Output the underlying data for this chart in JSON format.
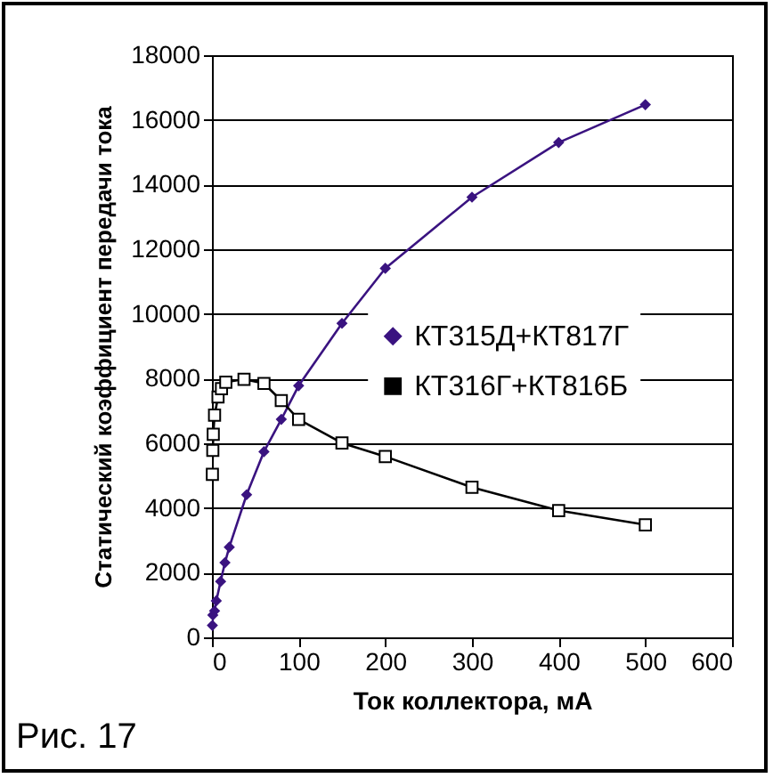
{
  "chart_data": {
    "type": "line",
    "xlabel": "Ток коллектора, мА",
    "ylabel": "Статический коэффициент передачи тока",
    "xlim": [
      0,
      600
    ],
    "xticks": [
      0,
      100,
      200,
      300,
      400,
      500,
      600
    ],
    "ylim": [
      0,
      18000
    ],
    "yticks": [
      0,
      2000,
      4000,
      6000,
      8000,
      10000,
      12000,
      14000,
      16000,
      18000
    ],
    "grid": "y",
    "legend": "right",
    "annotations": [
      "Рис. 17"
    ],
    "series": [
      {
        "name": "КТ315Д+КТ817Г",
        "color": "#3a1380",
        "marker": "diamond",
        "x": [
          0.5,
          1,
          3,
          5,
          10,
          15,
          20,
          40,
          60,
          80,
          100,
          150,
          200,
          300,
          400,
          500
        ],
        "values": [
          370,
          690,
          820,
          1130,
          1730,
          2310,
          2790,
          4410,
          5740,
          6740,
          7780,
          9710,
          11410,
          13610,
          15300,
          16470
        ]
      },
      {
        "name": "КТ316Г+КТ816Б",
        "color": "#000000",
        "marker": "square",
        "x": [
          0.5,
          1,
          1.5,
          3,
          7,
          11,
          16,
          37,
          60,
          80,
          100,
          150,
          200,
          300,
          400,
          500
        ],
        "values": [
          5040,
          5780,
          6280,
          6870,
          7430,
          7690,
          7890,
          7980,
          7850,
          7320,
          6740,
          6010,
          5590,
          4640,
          3920,
          3480
        ]
      }
    ]
  }
}
